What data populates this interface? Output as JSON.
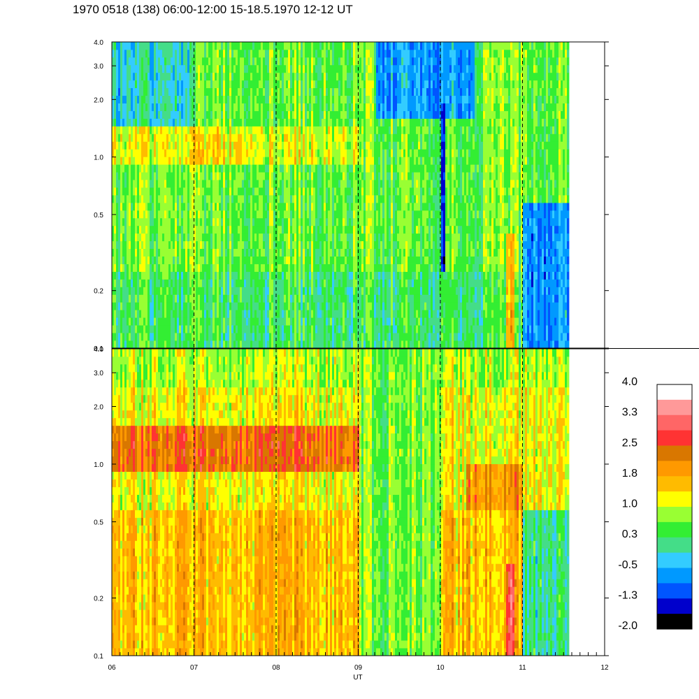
{
  "title": "1970 0518 (138) 06:00-12:00 15-18.5.1970  12-12 UT",
  "chart_data": {
    "type": "heatmap",
    "xlabel": "UT",
    "x_range": [
      6,
      12
    ],
    "x_ticks": [
      "06",
      "07",
      "08",
      "09",
      "10",
      "11",
      "12"
    ],
    "data_end_ut": 11.55,
    "y_scale": "log",
    "y_range": [
      0.1,
      4.0
    ],
    "y_ticks": [
      {
        "value": 0.1,
        "label": "0.1"
      },
      {
        "value": 0.2,
        "label": "0.2"
      },
      {
        "value": 0.5,
        "label": "0.5"
      },
      {
        "value": 1.0,
        "label": "1.0"
      },
      {
        "value": 2.0,
        "label": "2.0"
      },
      {
        "value": 3.0,
        "label": "3.0"
      },
      {
        "value": 4.0,
        "label": "4.0"
      }
    ],
    "dashed_hour_lines": [
      7,
      8,
      9,
      10,
      11
    ],
    "panels": [
      {
        "name": "upper",
        "base_level": 0.3,
        "bands": [
          {
            "ylo": 0.1,
            "yhi": 4.0,
            "t0": 6.0,
            "t1": 11.55,
            "value": 0.3
          },
          {
            "ylo": 0.25,
            "yhi": 4.0,
            "t0": 6.0,
            "t1": 11.55,
            "value": 0.6
          },
          {
            "ylo": 0.9,
            "yhi": 1.4,
            "t0": 6.0,
            "t1": 9.0,
            "value": 1.1
          },
          {
            "ylo": 0.9,
            "yhi": 1.3,
            "t0": 7.0,
            "t1": 7.7,
            "value": 1.4
          },
          {
            "ylo": 1.5,
            "yhi": 4.0,
            "t0": 6.0,
            "t1": 7.0,
            "value": -0.2
          },
          {
            "ylo": 1.6,
            "yhi": 4.0,
            "t0": 9.2,
            "t1": 10.4,
            "value": -0.6
          },
          {
            "ylo": 0.25,
            "yhi": 2.0,
            "t0": 10.0,
            "t1": 10.05,
            "value": -1.4
          },
          {
            "ylo": 0.1,
            "yhi": 0.6,
            "t0": 11.0,
            "t1": 11.55,
            "value": -0.6
          },
          {
            "ylo": 0.1,
            "yhi": 0.4,
            "t0": 10.8,
            "t1": 10.9,
            "value": 1.6
          }
        ]
      },
      {
        "name": "lower",
        "base_level": 1.3,
        "bands": [
          {
            "ylo": 0.1,
            "yhi": 4.0,
            "t0": 6.0,
            "t1": 11.55,
            "value": 1.2
          },
          {
            "ylo": 0.1,
            "yhi": 0.6,
            "t0": 6.0,
            "t1": 11.55,
            "value": 1.6
          },
          {
            "ylo": 0.9,
            "yhi": 1.6,
            "t0": 6.0,
            "t1": 9.0,
            "value": 2.3
          },
          {
            "ylo": 0.6,
            "yhi": 1.0,
            "t0": 10.3,
            "t1": 11.0,
            "value": 2.0
          },
          {
            "ylo": 2.5,
            "yhi": 4.0,
            "t0": 6.0,
            "t1": 11.55,
            "value": 0.9
          },
          {
            "ylo": 0.1,
            "yhi": 4.0,
            "t0": 9.0,
            "t1": 10.0,
            "value": 0.6
          },
          {
            "ylo": 0.1,
            "yhi": 0.6,
            "t0": 11.0,
            "t1": 11.55,
            "value": 0.1
          },
          {
            "ylo": 0.1,
            "yhi": 0.3,
            "t0": 10.8,
            "t1": 10.9,
            "value": 2.9
          }
        ]
      }
    ],
    "colorbar": {
      "labels": [
        "4.0",
        "3.3",
        "2.5",
        "1.8",
        "1.0",
        "0.3",
        "-0.5",
        "-1.3",
        "-2.0"
      ],
      "colors": [
        "#ffffff",
        "#ff9999",
        "#ff6666",
        "#ff3333",
        "#d97700",
        "#ff9900",
        "#ffbb00",
        "#ffff00",
        "#99ff33",
        "#33ee33",
        "#44dd88",
        "#33ccff",
        "#0099ff",
        "#0055ff",
        "#0000cc",
        "#000000"
      ],
      "vmin": -2.0,
      "vmax": 4.0
    }
  }
}
